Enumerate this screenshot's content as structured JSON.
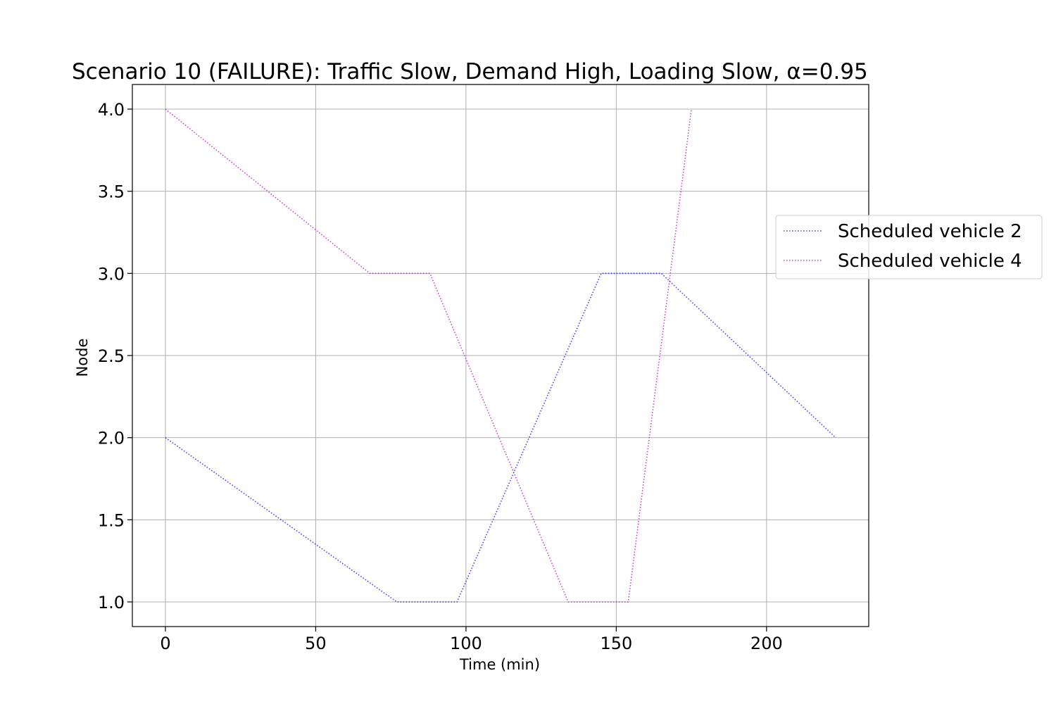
{
  "chart_data": {
    "type": "line",
    "title": "Scenario 10 (FAILURE): Traffic Slow, Demand High, Loading Slow, α=0.95",
    "xlabel": "Time (min)",
    "ylabel": "Node",
    "xlim": [
      -11,
      234
    ],
    "ylim": [
      0.85,
      4.15
    ],
    "xticks": [
      0,
      50,
      100,
      150,
      200
    ],
    "xtick_labels": [
      "0",
      "50",
      "100",
      "150",
      "200"
    ],
    "yticks": [
      1.0,
      1.5,
      2.0,
      2.5,
      3.0,
      3.5,
      4.0
    ],
    "ytick_labels": [
      "1.0",
      "1.5",
      "2.0",
      "2.5",
      "3.0",
      "3.5",
      "4.0"
    ],
    "grid": true,
    "legend_position": "right",
    "series": [
      {
        "name": "Scheduled vehicle 2",
        "color": "#0000ff",
        "linestyle": "dotted",
        "x": [
          0,
          77,
          97,
          145,
          165,
          223
        ],
        "y": [
          2,
          1,
          1,
          3,
          3,
          2
        ]
      },
      {
        "name": "Scheduled vehicle 4",
        "color": "#bf00bf",
        "linestyle": "dotted",
        "x": [
          0,
          68,
          88,
          134,
          154,
          175
        ],
        "y": [
          4,
          3,
          3,
          1,
          1,
          4
        ]
      }
    ]
  }
}
